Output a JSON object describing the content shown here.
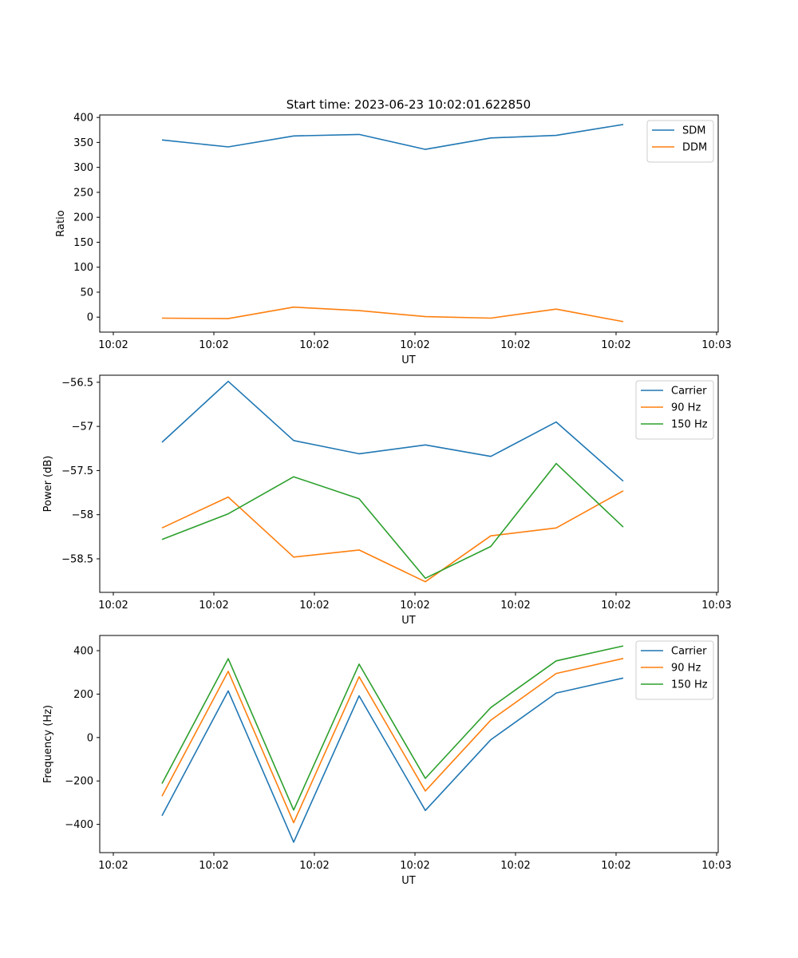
{
  "figure": {
    "title": "Start time: 2023-06-23 10:02:01.622850"
  },
  "colors": {
    "blue": "#1f77b4",
    "orange": "#ff7f0e",
    "green": "#2ca02c"
  },
  "chart_data": [
    {
      "type": "line",
      "title": "Start time: 2023-06-23 10:02:01.622850",
      "xlabel": "UT",
      "ylabel": "Ratio",
      "x_tick_labels": [
        "10:02",
        "10:02",
        "10:02",
        "10:02",
        "10:02",
        "10:02",
        "10:03"
      ],
      "ylim": [
        -30,
        405
      ],
      "y_ticks": [
        0,
        50,
        100,
        150,
        200,
        250,
        300,
        350,
        400
      ],
      "legend_position": "upper right",
      "grid": false,
      "series": [
        {
          "name": "SDM",
          "color": "#1f77b4",
          "values": [
            355,
            341,
            363,
            366,
            336,
            359,
            364,
            386
          ]
        },
        {
          "name": "DDM",
          "color": "#ff7f0e",
          "values": [
            -2,
            -3,
            20,
            13,
            1,
            -2,
            16,
            -9
          ]
        }
      ]
    },
    {
      "type": "line",
      "title": "",
      "xlabel": "UT",
      "ylabel": "Power (dB)",
      "x_tick_labels": [
        "10:02",
        "10:02",
        "10:02",
        "10:02",
        "10:02",
        "10:02",
        "10:03"
      ],
      "ylim": [
        -58.88,
        -56.42
      ],
      "y_ticks": [
        -58.5,
        -58.0,
        -57.5,
        -57.0,
        -56.5
      ],
      "legend_position": "upper right",
      "grid": false,
      "series": [
        {
          "name": "Carrier",
          "color": "#1f77b4",
          "values": [
            -57.18,
            -56.49,
            -57.16,
            -57.31,
            -57.21,
            -57.34,
            -56.95,
            -57.62
          ]
        },
        {
          "name": "90 Hz",
          "color": "#ff7f0e",
          "values": [
            -58.15,
            -57.8,
            -58.48,
            -58.4,
            -58.76,
            -58.24,
            -58.15,
            -57.73
          ]
        },
        {
          "name": "150 Hz",
          "color": "#2ca02c",
          "values": [
            -58.28,
            -57.99,
            -57.57,
            -57.82,
            -58.72,
            -58.36,
            -57.42,
            -58.14
          ]
        }
      ]
    },
    {
      "type": "line",
      "title": "",
      "xlabel": "UT",
      "ylabel": "Frequency (Hz)",
      "x_tick_labels": [
        "10:02",
        "10:02",
        "10:02",
        "10:02",
        "10:02",
        "10:02",
        "10:03"
      ],
      "ylim": [
        -530,
        470
      ],
      "y_ticks": [
        -400,
        -200,
        0,
        200,
        400
      ],
      "legend_position": "upper right",
      "grid": false,
      "series": [
        {
          "name": "Carrier",
          "color": "#1f77b4",
          "values": [
            -360,
            215,
            -482,
            192,
            -336,
            -10,
            205,
            274
          ]
        },
        {
          "name": "90 Hz",
          "color": "#ff7f0e",
          "values": [
            -270,
            305,
            -392,
            280,
            -246,
            80,
            295,
            364
          ]
        },
        {
          "name": "150 Hz",
          "color": "#2ca02c",
          "values": [
            -212,
            363,
            -334,
            338,
            -188,
            138,
            353,
            422
          ]
        }
      ]
    }
  ]
}
